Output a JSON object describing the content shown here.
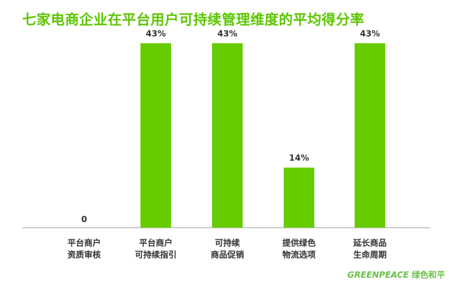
{
  "chart_data": {
    "type": "bar",
    "title": "七家电商企业在平台用户可持续管理维度的平均得分率",
    "categories": [
      [
        "平台商户",
        "资质审核"
      ],
      [
        "平台商户",
        "可持续指引"
      ],
      [
        "可持续",
        "商品促销"
      ],
      [
        "提供绿色",
        "物流选项"
      ],
      [
        "延长商品",
        "生命周期"
      ]
    ],
    "values": [
      0,
      43,
      43,
      14,
      43
    ],
    "data_labels": [
      "0",
      "43%",
      "43%",
      "14%",
      "43%"
    ],
    "ylim": [
      0,
      50
    ],
    "grid": false,
    "bar_color": "#66cc00"
  },
  "logo": {
    "en": "GREENPEACE",
    "cn": "绿色和平"
  }
}
